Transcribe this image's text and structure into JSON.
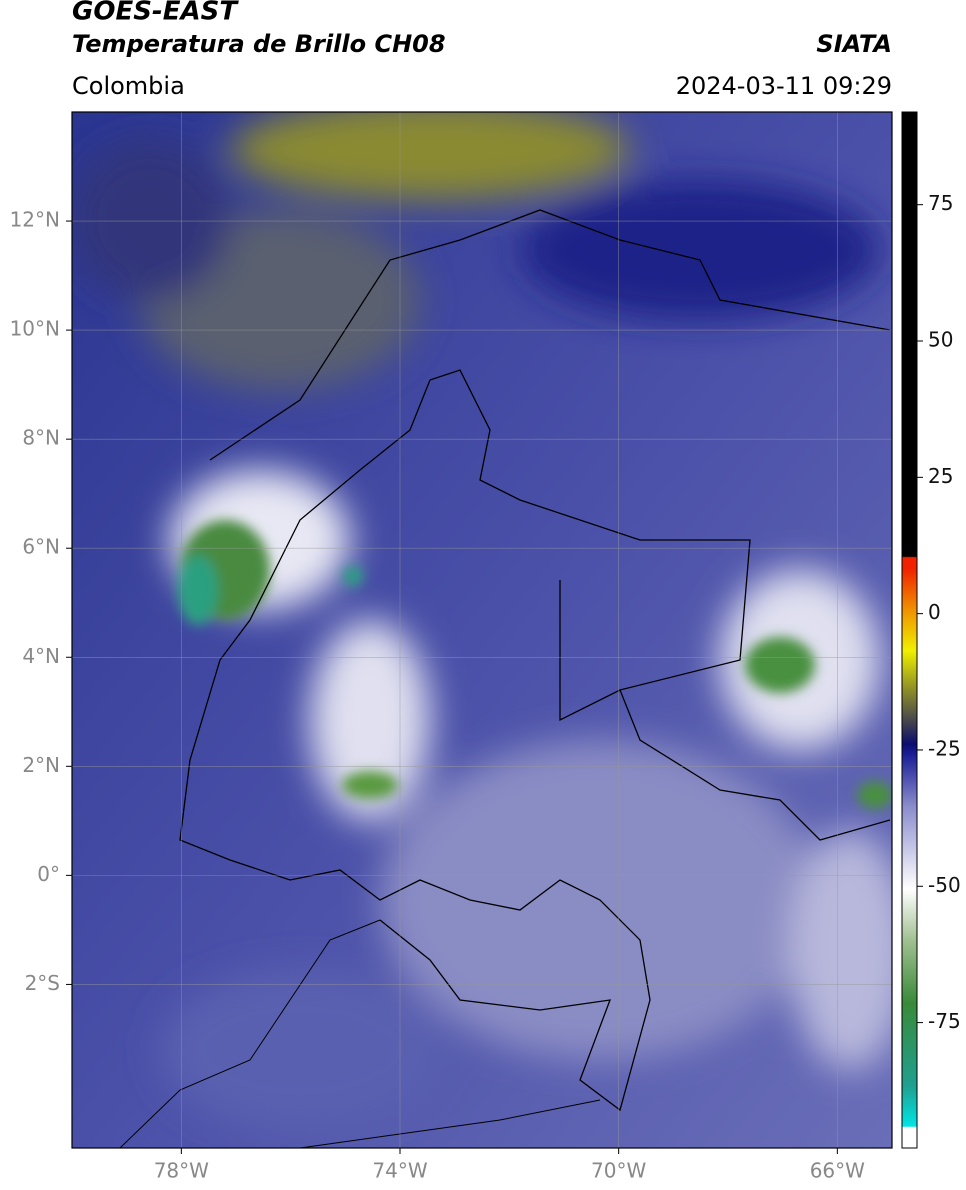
{
  "map": {
    "title": "GOES-EAST",
    "subtitle": "Temperatura de Brillo CH08",
    "region": "Colombia",
    "source": "SIATA",
    "datetime": "2024-03-11 09:29",
    "xlim": [
      -80,
      -65
    ],
    "ylim": [
      -5,
      14
    ],
    "xticks": [
      {
        "value": -78,
        "label": "78°W"
      },
      {
        "value": -74,
        "label": "74°W"
      },
      {
        "value": -70,
        "label": "70°W"
      },
      {
        "value": -66,
        "label": "66°W"
      }
    ],
    "yticks": [
      {
        "value": -2,
        "label": "2°S"
      },
      {
        "value": 0,
        "label": "0°"
      },
      {
        "value": 2,
        "label": "2°N"
      },
      {
        "value": 4,
        "label": "4°N"
      },
      {
        "value": 6,
        "label": "6°N"
      },
      {
        "value": 8,
        "label": "8°N"
      },
      {
        "value": 10,
        "label": "10°N"
      },
      {
        "value": 12,
        "label": "12°N"
      }
    ],
    "colorbar": {
      "lim": [
        -98,
        92
      ],
      "ticks": [
        -75,
        -50,
        -25,
        0,
        25,
        50,
        75
      ]
    }
  }
}
